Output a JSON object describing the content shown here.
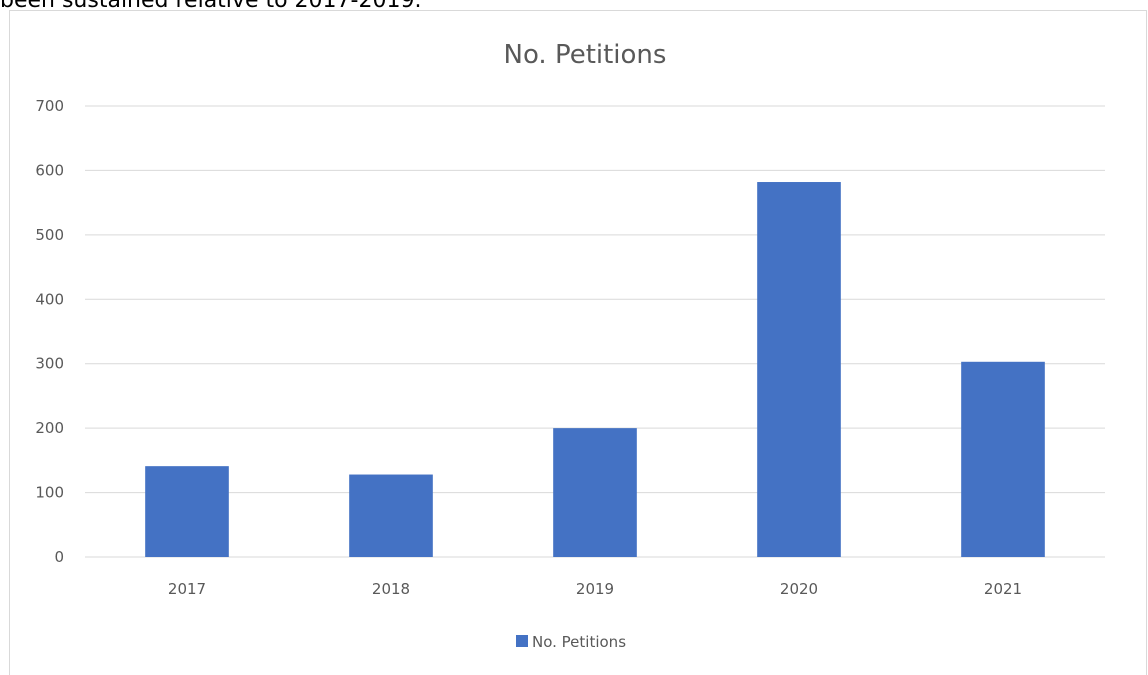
{
  "page": {
    "above_text": "been sustained relative to 2017-2019."
  },
  "chart_data": {
    "type": "bar",
    "title": "No. Petitions",
    "categories": [
      "2017",
      "2018",
      "2019",
      "2020",
      "2021"
    ],
    "series": [
      {
        "name": "No. Petitions",
        "values": [
          141,
          128,
          200,
          582,
          303
        ],
        "color": "#4472c4"
      }
    ],
    "xlabel": "",
    "ylabel": "",
    "ylim": [
      0,
      700
    ],
    "yticks": [
      0,
      100,
      200,
      300,
      400,
      500,
      600,
      700
    ],
    "grid": true,
    "gridline_color": "#d9d9d9",
    "legend": "bottom"
  }
}
